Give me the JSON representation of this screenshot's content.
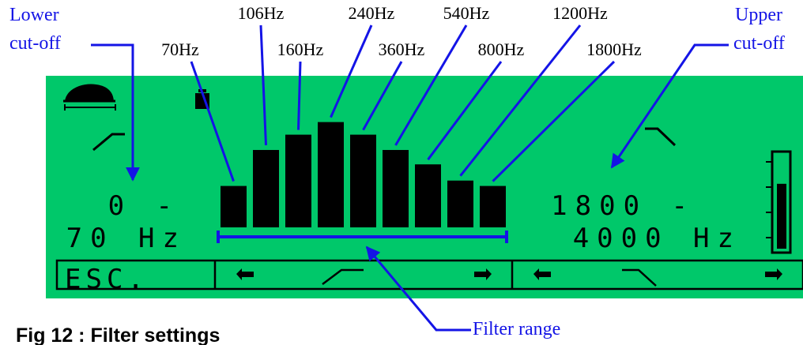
{
  "annotations": {
    "lower_cutoff": [
      "Lower",
      "cut-off"
    ],
    "upper_cutoff": [
      "Upper",
      "cut-off"
    ],
    "filter_range": "Filter range",
    "color": "#1414e6"
  },
  "frequencies": [
    {
      "label": "70Hz",
      "level": 0.46
    },
    {
      "label": "106Hz",
      "level": 0.86
    },
    {
      "label": "160Hz",
      "level": 1.03
    },
    {
      "label": "240Hz",
      "level": 1.17
    },
    {
      "label": "360Hz",
      "level": 1.03
    },
    {
      "label": "540Hz",
      "level": 0.86
    },
    {
      "label": "800Hz",
      "level": 0.7
    },
    {
      "label": "1200Hz",
      "level": 0.52
    },
    {
      "label": "1800Hz",
      "level": 0.46
    }
  ],
  "display": {
    "background": "#00c86a",
    "lower_value": "0 -",
    "lower_unit": "70 Hz",
    "upper_value": "1800 -",
    "upper_unit": "4000 Hz",
    "esc_label": "ESC.",
    "level_meter": 0.69,
    "icons": [
      "speaker-icon",
      "battery-icon",
      "low-cut-slope-icon",
      "high-cut-slope-icon",
      "left-arrow-icon",
      "right-arrow-icon"
    ]
  },
  "caption": "Fig 12 : Filter settings"
}
